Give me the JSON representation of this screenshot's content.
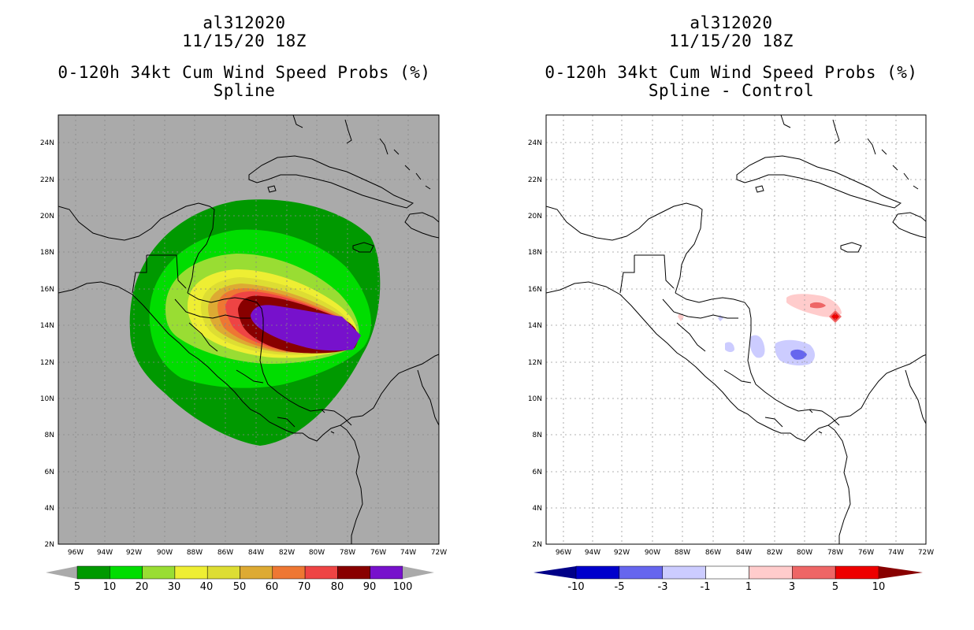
{
  "left_panel": {
    "storm_id": "al312020",
    "datetime": "11/15/20 18Z",
    "product": "0-120h 34kt Cum Wind Speed Probs (%)",
    "subtitle": "Spline",
    "background_color": "#aaaaaa",
    "colorbar": {
      "labels": [
        "5",
        "10",
        "20",
        "30",
        "40",
        "50",
        "60",
        "70",
        "80",
        "90",
        "100"
      ],
      "colors": [
        "#009900",
        "#00dd00",
        "#99dd33",
        "#eeee33",
        "#dddd33",
        "#ddaa33",
        "#ee7733",
        "#ee4444",
        "#880000",
        "#7711cc"
      ]
    }
  },
  "right_panel": {
    "storm_id": "al312020",
    "datetime": "11/15/20 18Z",
    "product": "0-120h 34kt Cum Wind Speed Probs (%)",
    "subtitle": "Spline - Control",
    "background_color": "#ffffff",
    "colorbar": {
      "labels": [
        "-10",
        "-5",
        "-3",
        "-1",
        "1",
        "3",
        "5",
        "10"
      ],
      "colors": [
        "#0000cc",
        "#6666ee",
        "#ccccff",
        "#ffffff",
        "#ffcccc",
        "#ee6666",
        "#ee0000",
        "#880000"
      ]
    }
  },
  "axes": {
    "lat_ticks": [
      "24N",
      "22N",
      "20N",
      "18N",
      "16N",
      "14N",
      "12N",
      "10N",
      "8N",
      "6N",
      "4N",
      "2N"
    ],
    "lon_ticks": [
      "96W",
      "94W",
      "92W",
      "90W",
      "88W",
      "86W",
      "84W",
      "82W",
      "80W",
      "78W",
      "76W",
      "74W",
      "72W"
    ]
  },
  "map_extent": {
    "lon_min": -97,
    "lon_max": -72,
    "lat_min": 2,
    "lat_max": 25.5
  }
}
